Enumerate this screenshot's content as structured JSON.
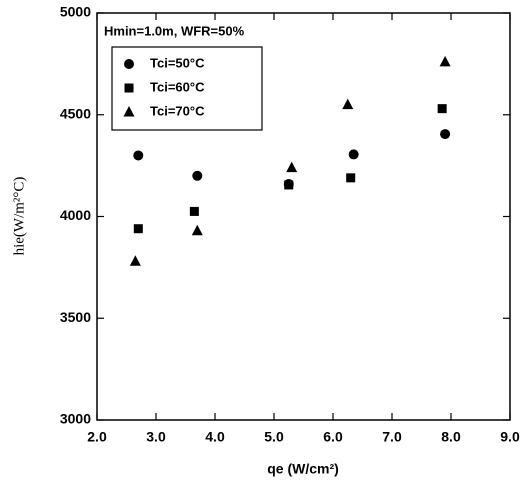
{
  "chart_data": {
    "type": "scatter",
    "annotation": "Hmin=1.0m, WFR=50%",
    "x_label": "qe (W/cm²)",
    "y_label": "hie(W/m²°C)",
    "xlim": [
      2.0,
      9.0
    ],
    "xticks": [
      {
        "value": 2,
        "label": "2.0"
      },
      {
        "value": 3,
        "label": "3.0"
      },
      {
        "value": 4,
        "label": "4.0"
      },
      {
        "value": 5,
        "label": "5.0"
      },
      {
        "value": 6,
        "label": "6.0"
      },
      {
        "value": 7,
        "label": "7.0"
      },
      {
        "value": 8,
        "label": "8.0"
      },
      {
        "value": 9,
        "label": "9.0"
      }
    ],
    "ylim": [
      3000,
      5000
    ],
    "yticks": [
      3000,
      3500,
      4000,
      4500,
      5000
    ],
    "legend": "upper left",
    "series": [
      {
        "name": "Tci=50°C",
        "color": "#000000",
        "marker": "circle",
        "x": [
          2.7,
          3.7,
          5.25,
          6.35,
          7.9
        ],
        "values": [
          4300,
          4200,
          4160,
          4305,
          4405
        ]
      },
      {
        "name": "Tci=60°C",
        "color": "#000000",
        "marker": "square",
        "x": [
          2.7,
          3.65,
          5.25,
          6.3,
          7.85
        ],
        "values": [
          3940,
          4025,
          4155,
          4190,
          4530
        ]
      },
      {
        "name": "Tci=70°C",
        "color": "#000000",
        "marker": "triangle",
        "x": [
          2.65,
          3.7,
          5.3,
          6.25,
          7.9
        ],
        "values": [
          3780,
          3930,
          4240,
          4550,
          4760
        ]
      }
    ]
  }
}
